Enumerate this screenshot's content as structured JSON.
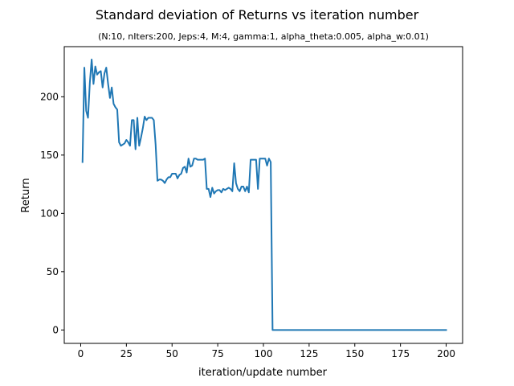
{
  "chart_data": {
    "type": "line",
    "title": "Standard deviation of Returns vs iteration number",
    "subtitle": "(N:10, nIters:200, Jeps:4, M:4, gamma:1, alpha_theta:0.005, alpha_w:0.01)",
    "xlabel": "iteration/update number",
    "ylabel": "Return",
    "xlim": [
      -9,
      209
    ],
    "ylim": [
      -11.5,
      243
    ],
    "xticks": [
      0,
      25,
      50,
      75,
      100,
      125,
      150,
      175,
      200
    ],
    "yticks": [
      0,
      50,
      100,
      150,
      200
    ],
    "grid": false,
    "line_color": "#1f77b4",
    "series": [
      {
        "points": [
          [
            1,
            144
          ],
          [
            2,
            225
          ],
          [
            3,
            188
          ],
          [
            4,
            182
          ],
          [
            5,
            212
          ],
          [
            6,
            232
          ],
          [
            7,
            211
          ],
          [
            8,
            226
          ],
          [
            9,
            219
          ],
          [
            10,
            221
          ],
          [
            11,
            222
          ],
          [
            12,
            208
          ],
          [
            13,
            220
          ],
          [
            14,
            225
          ],
          [
            15,
            211
          ],
          [
            16,
            199
          ],
          [
            17,
            208
          ],
          [
            18,
            194
          ],
          [
            19,
            191
          ],
          [
            20,
            189
          ],
          [
            21,
            161
          ],
          [
            22,
            158
          ],
          [
            23,
            159
          ],
          [
            24,
            160
          ],
          [
            25,
            163
          ],
          [
            26,
            161
          ],
          [
            27,
            158
          ],
          [
            28,
            180
          ],
          [
            29,
            180
          ],
          [
            30,
            155
          ],
          [
            31,
            182
          ],
          [
            32,
            158
          ],
          [
            33,
            165
          ],
          [
            34,
            173
          ],
          [
            35,
            183
          ],
          [
            36,
            180
          ],
          [
            37,
            182
          ],
          [
            38,
            182
          ],
          [
            39,
            182
          ],
          [
            40,
            180
          ],
          [
            41,
            159
          ],
          [
            42,
            128
          ],
          [
            43,
            129
          ],
          [
            44,
            129
          ],
          [
            45,
            128
          ],
          [
            46,
            126
          ],
          [
            47,
            129
          ],
          [
            48,
            131
          ],
          [
            49,
            131
          ],
          [
            50,
            134
          ],
          [
            51,
            134
          ],
          [
            52,
            134
          ],
          [
            53,
            130
          ],
          [
            54,
            133
          ],
          [
            55,
            134
          ],
          [
            56,
            139
          ],
          [
            57,
            140
          ],
          [
            58,
            135
          ],
          [
            59,
            147
          ],
          [
            60,
            140
          ],
          [
            61,
            141
          ],
          [
            62,
            147
          ],
          [
            63,
            147
          ],
          [
            64,
            146
          ],
          [
            65,
            146
          ],
          [
            66,
            146
          ],
          [
            67,
            146
          ],
          [
            68,
            147
          ],
          [
            69,
            121
          ],
          [
            70,
            121
          ],
          [
            71,
            114
          ],
          [
            72,
            122
          ],
          [
            73,
            117
          ],
          [
            74,
            119
          ],
          [
            75,
            120
          ],
          [
            76,
            120
          ],
          [
            77,
            118
          ],
          [
            78,
            121
          ],
          [
            79,
            120
          ],
          [
            80,
            121
          ],
          [
            81,
            122
          ],
          [
            82,
            121
          ],
          [
            83,
            119
          ],
          [
            84,
            143
          ],
          [
            85,
            126
          ],
          [
            86,
            121
          ],
          [
            87,
            119
          ],
          [
            88,
            123
          ],
          [
            89,
            123
          ],
          [
            90,
            119
          ],
          [
            91,
            123
          ],
          [
            92,
            118
          ],
          [
            93,
            146
          ],
          [
            94,
            146
          ],
          [
            95,
            146
          ],
          [
            96,
            146
          ],
          [
            97,
            121
          ],
          [
            98,
            147
          ],
          [
            99,
            147
          ],
          [
            100,
            147
          ],
          [
            101,
            147
          ],
          [
            102,
            141
          ],
          [
            103,
            147
          ],
          [
            104,
            144
          ],
          [
            105,
            0
          ],
          [
            106,
            0
          ],
          [
            200,
            0
          ]
        ]
      }
    ]
  }
}
